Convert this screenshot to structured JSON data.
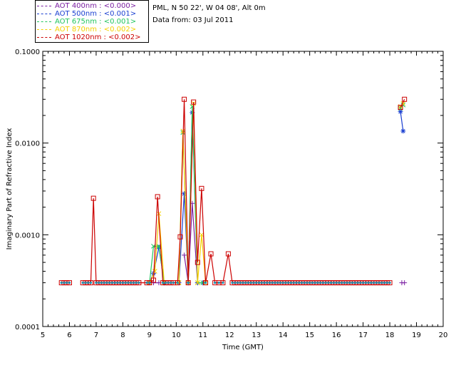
{
  "header": {
    "station": "PML, N 50 22', W 04 08', Alt 0m",
    "date": "Data from: 03 Jul 2011"
  },
  "legend": [
    {
      "label": "AOT  400nm : <0.000>",
      "color": "#7b1fa2"
    },
    {
      "label": "AOT  500nm : <0.001>",
      "color": "#1a3fd1"
    },
    {
      "label": "AOT  675nm : <0.001>",
      "color": "#22c55e"
    },
    {
      "label": "AOT  870nm : <0.002>",
      "color": "#f5d000"
    },
    {
      "label": "AOT 1020nm : <0.002>",
      "color": "#cc0000"
    }
  ],
  "chart_data": {
    "type": "line",
    "xlabel": "Time (GMT)",
    "ylabel": "Imaginary Part of Refractive Index",
    "xlim": [
      5,
      20
    ],
    "ylim": [
      0.0001,
      0.1
    ],
    "yscale": "log",
    "xticks": [
      "5",
      "6",
      "7",
      "8",
      "9",
      "10",
      "11",
      "12",
      "13",
      "14",
      "15",
      "16",
      "17",
      "18",
      "19",
      "20"
    ],
    "yticks": [
      {
        "value": 0.0001,
        "label": "0.0001"
      },
      {
        "value": 0.001,
        "label": "0.0010"
      },
      {
        "value": 0.01,
        "label": "0.0100"
      },
      {
        "value": 0.1,
        "label": "0.1000"
      }
    ],
    "grid": false,
    "series": [
      {
        "name": "AOT 400nm",
        "color": "#7b1fa2",
        "marker": "plus",
        "x": [
          9.15,
          9.35,
          10.3,
          10.45,
          10.6,
          10.8,
          11.0,
          18.45,
          18.55
        ],
        "y": [
          0.0003,
          0.0003,
          0.0006,
          0.0003,
          0.0022,
          0.0003,
          0.0003,
          0.0003,
          0.0003
        ]
      },
      {
        "name": "AOT 500nm",
        "color": "#1a3fd1",
        "marker": "star",
        "x": [
          9.0,
          9.15,
          9.35,
          9.55,
          10.1,
          10.3,
          10.45,
          10.6,
          10.8,
          11.0,
          18.4,
          18.5
        ],
        "y": [
          0.0003,
          0.00038,
          0.00073,
          0.0003,
          0.0003,
          0.0028,
          0.0003,
          0.0215,
          0.0003,
          0.0003,
          0.022,
          0.0135
        ]
      },
      {
        "name": "AOT 675nm",
        "color": "#22c55e",
        "marker": "x",
        "x": [
          9.0,
          9.15,
          9.35,
          9.55,
          10.1,
          10.25,
          10.45,
          10.6,
          10.8,
          11.0,
          18.4,
          18.5
        ],
        "y": [
          0.0003,
          0.00075,
          0.00075,
          0.0003,
          0.0003,
          0.013,
          0.0003,
          0.025,
          0.0003,
          0.0003,
          0.024,
          0.026
        ]
      },
      {
        "name": "AOT 870nm",
        "color": "#f5d000",
        "marker": "x",
        "x": [
          9.0,
          9.2,
          9.35,
          9.55,
          10.1,
          10.25,
          10.45,
          10.65,
          10.8,
          10.95,
          11.1,
          18.4,
          18.5
        ],
        "y": [
          0.0003,
          0.0004,
          0.0017,
          0.0003,
          0.0003,
          0.0135,
          0.0003,
          0.027,
          0.0003,
          0.001,
          0.0003,
          0.025,
          0.027
        ]
      },
      {
        "name": "AOT 1020nm",
        "color": "#cc0000",
        "marker": "square",
        "x": [
          5.7,
          5.8,
          5.9,
          6.0,
          6.5,
          6.6,
          6.7,
          6.8,
          6.9,
          7.0,
          7.1,
          7.2,
          7.3,
          7.4,
          7.5,
          7.6,
          7.7,
          7.8,
          7.9,
          8.0,
          8.1,
          8.2,
          8.3,
          8.4,
          8.5,
          8.6,
          8.9,
          9.0,
          9.15,
          9.3,
          9.5,
          9.6,
          9.7,
          9.8,
          9.9,
          10.05,
          10.15,
          10.3,
          10.45,
          10.65,
          10.8,
          10.95,
          11.1,
          11.3,
          11.45,
          11.6,
          11.75,
          11.95,
          12.1,
          12.2,
          12.3,
          12.4,
          12.5,
          12.6,
          12.7,
          12.8,
          12.9,
          13.0,
          13.1,
          13.2,
          13.3,
          13.4,
          13.5,
          13.6,
          13.7,
          13.8,
          13.9,
          14.0,
          14.1,
          14.2,
          14.3,
          14.4,
          14.5,
          14.6,
          14.7,
          14.8,
          14.9,
          15.0,
          15.1,
          15.2,
          15.3,
          15.4,
          15.5,
          15.6,
          15.7,
          15.8,
          15.9,
          16.0,
          16.1,
          16.2,
          16.3,
          16.4,
          16.5,
          16.6,
          16.7,
          16.8,
          16.9,
          17.0,
          17.1,
          17.2,
          17.3,
          17.4,
          17.5,
          17.6,
          17.7,
          17.8,
          17.9,
          18.0,
          18.4,
          18.55
        ],
        "y": [
          0.0003,
          0.0003,
          0.0003,
          0.0003,
          0.0003,
          0.0003,
          0.0003,
          0.0003,
          0.0025,
          0.0003,
          0.0003,
          0.0003,
          0.0003,
          0.0003,
          0.0003,
          0.0003,
          0.0003,
          0.0003,
          0.0003,
          0.0003,
          0.0003,
          0.0003,
          0.0003,
          0.0003,
          0.0003,
          0.0003,
          0.0003,
          0.0003,
          0.00032,
          0.0026,
          0.0003,
          0.0003,
          0.0003,
          0.0003,
          0.0003,
          0.0003,
          0.00095,
          0.03,
          0.0003,
          0.028,
          0.0005,
          0.0032,
          0.0003,
          0.00062,
          0.0003,
          0.0003,
          0.0003,
          0.00062,
          0.0003,
          0.0003,
          0.0003,
          0.0003,
          0.0003,
          0.0003,
          0.0003,
          0.0003,
          0.0003,
          0.0003,
          0.0003,
          0.0003,
          0.0003,
          0.0003,
          0.0003,
          0.0003,
          0.0003,
          0.0003,
          0.0003,
          0.0003,
          0.0003,
          0.0003,
          0.0003,
          0.0003,
          0.0003,
          0.0003,
          0.0003,
          0.0003,
          0.0003,
          0.0003,
          0.0003,
          0.0003,
          0.0003,
          0.0003,
          0.0003,
          0.0003,
          0.0003,
          0.0003,
          0.0003,
          0.0003,
          0.0003,
          0.0003,
          0.0003,
          0.0003,
          0.0003,
          0.0003,
          0.0003,
          0.0003,
          0.0003,
          0.0003,
          0.0003,
          0.0003,
          0.0003,
          0.0003,
          0.0003,
          0.0003,
          0.0003,
          0.0003,
          0.0003,
          0.0003,
          0.0245,
          0.03
        ]
      }
    ]
  }
}
